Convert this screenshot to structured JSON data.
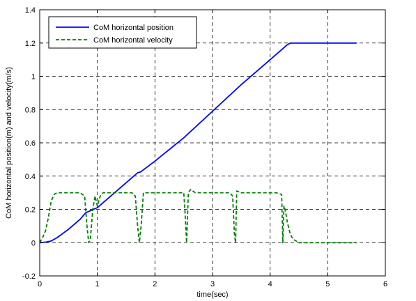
{
  "chart_data": {
    "type": "line",
    "title": "",
    "xlabel": "time(sec)",
    "ylabel": "CoM horizontal position(m) and velocity(m/s)",
    "xlim": [
      0,
      6
    ],
    "ylim": [
      -0.2,
      1.4
    ],
    "xticks": [
      "0",
      "1",
      "2",
      "3",
      "4",
      "5",
      "6"
    ],
    "yticks": [
      "-0.2",
      "0",
      "0.2",
      "0.4",
      "0.6",
      "0.8",
      "1",
      "1.2",
      "1.4"
    ],
    "grid": true,
    "legend_position": "top-left",
    "series": [
      {
        "name": "CoM horizontal position",
        "color": "#0000ff",
        "dash": "solid",
        "x": [
          0,
          0.1,
          0.2,
          0.3,
          0.5,
          0.7,
          0.8,
          0.9,
          1.0,
          1.1,
          1.3,
          1.5,
          1.6,
          1.7,
          1.75,
          2.0,
          2.5,
          3.0,
          3.5,
          4.0,
          4.2,
          4.3,
          4.35,
          4.5,
          5.5
        ],
        "values": [
          0,
          0.003,
          0.01,
          0.03,
          0.08,
          0.14,
          0.18,
          0.195,
          0.21,
          0.24,
          0.3,
          0.36,
          0.39,
          0.42,
          0.425,
          0.49,
          0.63,
          0.79,
          0.95,
          1.1,
          1.16,
          1.19,
          1.2,
          1.2,
          1.2
        ]
      },
      {
        "name": "CoM horizontal velocity",
        "color": "#008000",
        "dash": "dashed",
        "x": [
          0,
          0.05,
          0.1,
          0.15,
          0.2,
          0.25,
          0.3,
          0.4,
          0.5,
          0.6,
          0.7,
          0.78,
          0.82,
          0.85,
          0.88,
          0.92,
          0.96,
          1.0,
          1.05,
          1.1,
          1.15,
          1.2,
          1.3,
          1.4,
          1.5,
          1.6,
          1.66,
          1.7,
          1.73,
          1.76,
          1.8,
          1.85,
          1.9,
          2.0,
          2.2,
          2.3,
          2.4,
          2.5,
          2.52,
          2.55,
          2.58,
          2.62,
          2.7,
          2.8,
          3.0,
          3.2,
          3.3,
          3.35,
          3.38,
          3.4,
          3.42,
          3.5,
          3.6,
          3.8,
          4.0,
          4.1,
          4.2,
          4.22,
          4.24,
          4.26,
          4.3,
          4.35,
          4.4,
          4.45,
          4.5,
          4.6,
          5.0,
          5.5
        ],
        "values": [
          0,
          0.03,
          0.07,
          0.15,
          0.25,
          0.29,
          0.3,
          0.3,
          0.3,
          0.3,
          0.3,
          0.28,
          0.1,
          0.0,
          0.02,
          0.2,
          0.28,
          0.22,
          0.28,
          0.3,
          0.3,
          0.3,
          0.3,
          0.3,
          0.3,
          0.3,
          0.28,
          0.1,
          0.0,
          0.1,
          0.3,
          0.3,
          0.3,
          0.3,
          0.3,
          0.3,
          0.3,
          0.3,
          0.2,
          0.0,
          0.3,
          0.32,
          0.3,
          0.3,
          0.3,
          0.3,
          0.3,
          0.28,
          0.05,
          0.0,
          0.31,
          0.3,
          0.3,
          0.3,
          0.3,
          0.3,
          0.29,
          0.0,
          0.22,
          0.2,
          0.12,
          0.05,
          0.02,
          0.01,
          0.0,
          0.0,
          0.0,
          0.0
        ]
      }
    ]
  }
}
